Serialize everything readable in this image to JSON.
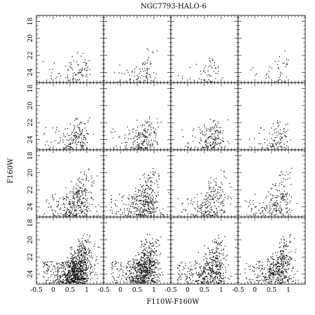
{
  "figure": {
    "title": "NGC7793-HALO-6",
    "xlabel": "F110W-F160W",
    "ylabel": "F160W"
  },
  "chart_data": {
    "type": "scatter",
    "layout": {
      "rows": 4,
      "cols": 4
    },
    "xlim": [
      -0.5,
      1.5
    ],
    "ylim": [
      25.2,
      17.3
    ],
    "y_inverted": true,
    "x_ticks": [
      -0.5,
      0,
      0.5,
      1
    ],
    "x_tick_labels": [
      "-0.5",
      "0",
      "0.5",
      "1"
    ],
    "y_ticks": [
      18,
      20,
      22,
      24
    ],
    "y_tick_labels": [
      "18",
      "20",
      "22",
      "24"
    ],
    "grid": false,
    "marker": "dot",
    "panel_densities": [
      [
        90,
        80,
        50,
        40
      ],
      [
        170,
        190,
        170,
        100
      ],
      [
        330,
        360,
        220,
        200
      ],
      [
        900,
        700,
        450,
        450
      ]
    ],
    "population": {
      "color_center": 0.75,
      "color_spread": 0.22,
      "faint_limit": 25.1,
      "note_bright_tip": "upper end of plume reaches ~F160W 21 in sparse panels, ~19 in dense panels"
    }
  }
}
